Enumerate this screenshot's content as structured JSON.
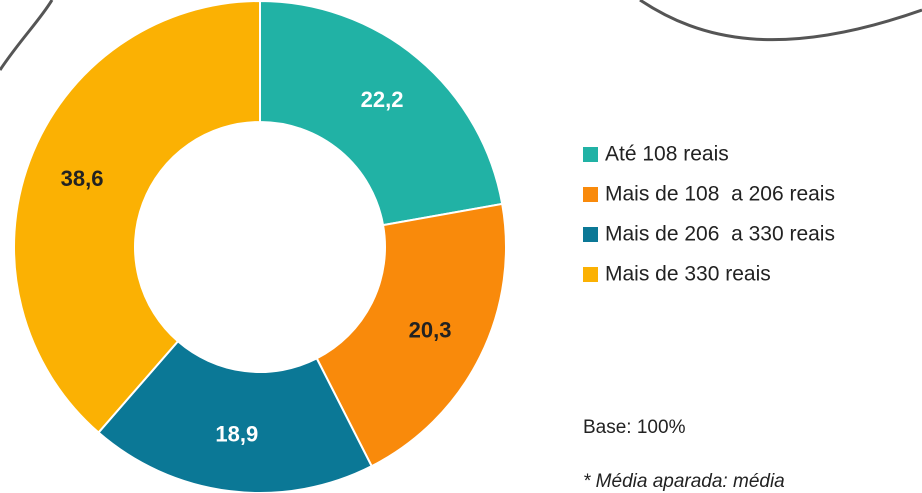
{
  "chart_data": {
    "type": "donut",
    "categories": [
      "Até 108 reais",
      "Mais de 108  a 206 reais",
      "Mais de 206  a 330 reais",
      "Mais de 330 reais"
    ],
    "values": [
      22.2,
      20.3,
      18.9,
      38.6
    ],
    "value_labels": [
      "22,2",
      "20,3",
      "18,9",
      "38,6"
    ],
    "colors": [
      "#21b2a5",
      "#f98a0b",
      "#0b7896",
      "#fbb103"
    ],
    "legend": "right",
    "base_note": "Base: 100%",
    "footnote": "* Média aparada: média"
  }
}
